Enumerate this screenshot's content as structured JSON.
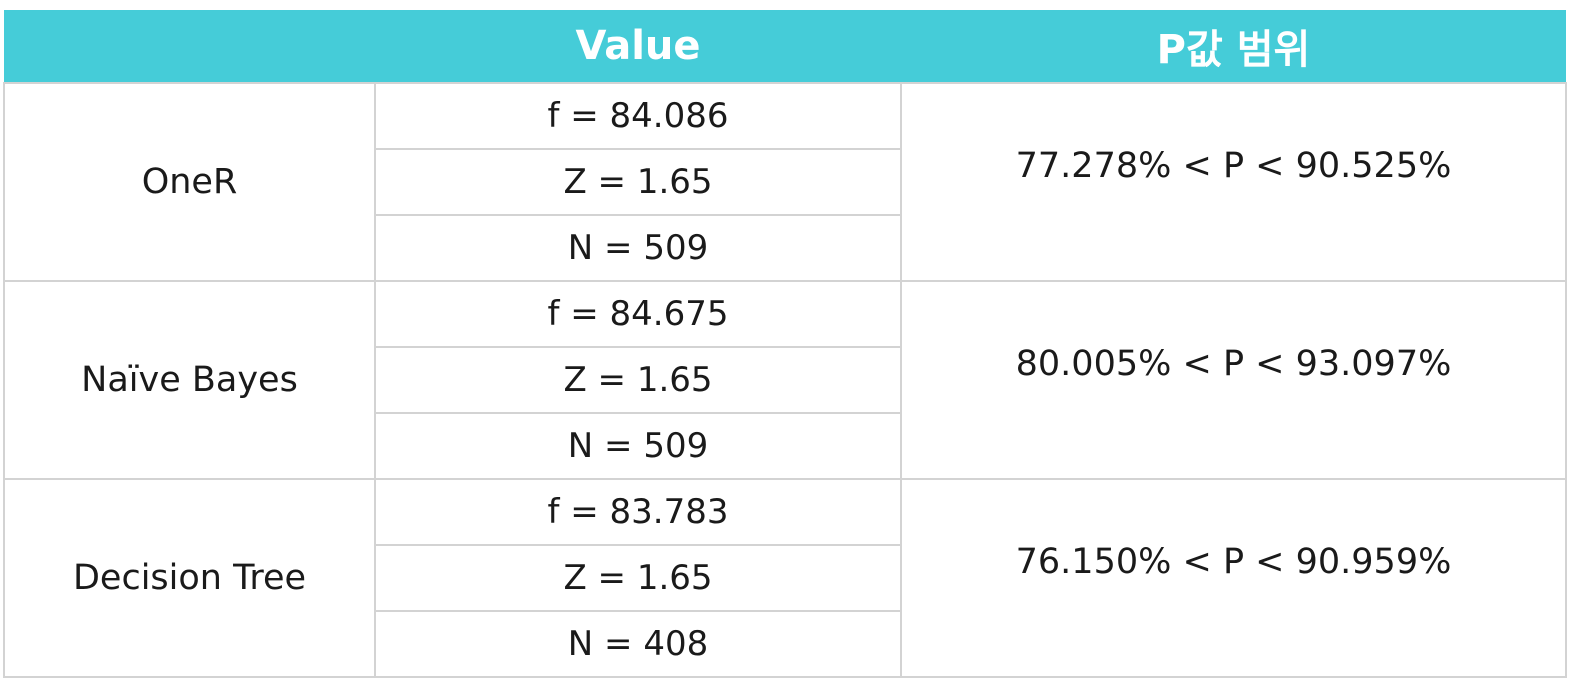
{
  "table": {
    "headers": [
      "",
      "Value",
      "P값 범위"
    ],
    "rows": [
      {
        "model": "OneR",
        "values": [
          "f = 84.086",
          "Z = 1.65",
          "N = 509"
        ],
        "range": "77.278% < P < 90.525%"
      },
      {
        "model": "Naïve Bayes",
        "values": [
          "f = 84.675",
          "Z = 1.65",
          "N = 509"
        ],
        "range": "80.005% < P < 93.097%"
      },
      {
        "model": "Decision Tree",
        "values": [
          "f = 83.783",
          "Z = 1.65",
          "N = 408"
        ],
        "range": "76.150% < P < 90.959%"
      }
    ]
  },
  "colors": {
    "header_bg": "#45ccd8",
    "header_text": "#ffffff",
    "grid": "#d3d3d3"
  }
}
